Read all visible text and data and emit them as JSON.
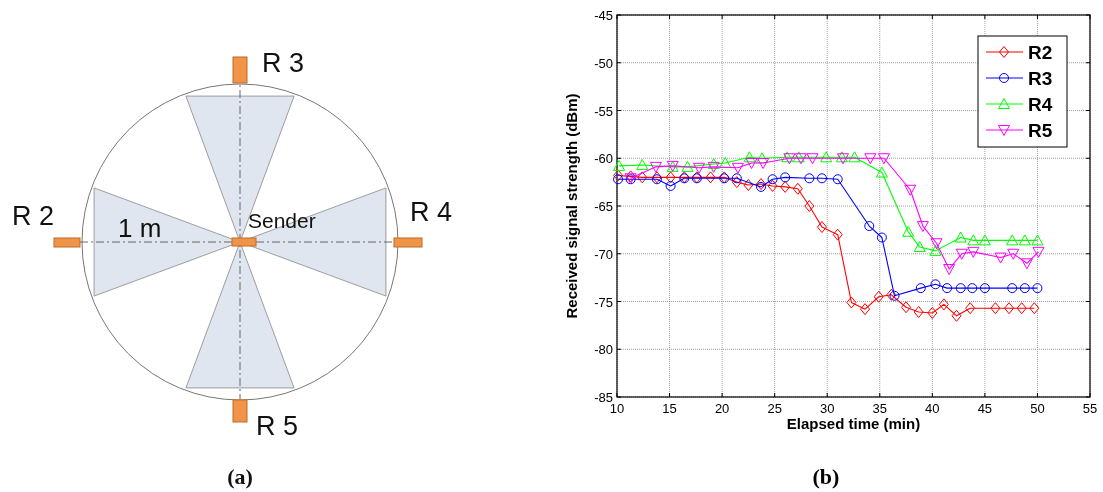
{
  "chart_data": [
    {
      "type": "other",
      "annotations": [
        "R 3",
        "R 2",
        "R 4",
        "R 5",
        "1 m",
        "Sender",
        "(a)"
      ]
    },
    {
      "type": "line",
      "xlabel": "Elapsed time (min)",
      "ylabel": "Received signal strength (dBm)",
      "annotations": [
        "(b)"
      ],
      "xlim": [
        10,
        55
      ],
      "xticks": [
        10,
        15,
        20,
        25,
        30,
        35,
        40,
        45,
        50,
        55
      ],
      "ylim": [
        -85,
        -45
      ],
      "yticks": [
        -85,
        -80,
        -75,
        -70,
        -65,
        -60,
        -55,
        -50,
        -45
      ],
      "grid": true,
      "legend": "top right",
      "line_style": "solid",
      "series": [
        {
          "name": "R2",
          "color": "#ff0000",
          "marker": "diamond",
          "x": [
            10.1,
            11.3,
            12.4,
            13.8,
            15.1,
            16.4,
            17.6,
            18.9,
            20.2,
            21.4,
            22.5,
            23.7,
            24.8,
            26,
            27.2,
            28.3,
            29.5,
            31,
            32.3,
            33.6,
            34.9,
            36.1,
            37.5,
            38.7,
            40,
            41.1,
            42.3,
            43.6,
            46,
            47.3,
            48.5,
            49.7
          ],
          "values": [
            -61.8,
            -61.9,
            -62,
            -62,
            -62,
            -62,
            -62,
            -62,
            -62,
            -62.5,
            -62.8,
            -62.7,
            -62.9,
            -63,
            -63.2,
            -65,
            -67.2,
            -68,
            -75.1,
            -75.8,
            -74.5,
            -74.3,
            -75.6,
            -76.1,
            -76.2,
            -75.3,
            -76.5,
            -75.7,
            -75.7,
            -75.7,
            -75.7,
            -75.7
          ]
        },
        {
          "name": "R3",
          "color": "#0000ff",
          "marker": "circle",
          "x": [
            10.1,
            11.3,
            13.8,
            15.1,
            16.4,
            17.6,
            20.2,
            21.4,
            23.7,
            24.8,
            26,
            28.3,
            29.5,
            31,
            34,
            35.2,
            36.4,
            38.9,
            40.3,
            41.4,
            42.7,
            43.8,
            45,
            47.6,
            48.8,
            50
          ],
          "values": [
            -62.2,
            -62.2,
            -62.2,
            -62.9,
            -62.1,
            -62.1,
            -62.1,
            -62.1,
            -63,
            -62.2,
            -62,
            -62.1,
            -62.1,
            -62.2,
            -67.1,
            -68.3,
            -74.4,
            -73.6,
            -73.2,
            -73.6,
            -73.6,
            -73.6,
            -73.6,
            -73.6,
            -73.6,
            -73.6
          ]
        },
        {
          "name": "R4",
          "color": "#00ff00",
          "marker": "triangle",
          "x": [
            10.2,
            12.4,
            15.3,
            16.7,
            19.2,
            20.3,
            22.6,
            23.8,
            26.2,
            27.3,
            29.9,
            31.4,
            32.6,
            35.2,
            37.7,
            38.8,
            40.3,
            42.7,
            43.9,
            45,
            47.6,
            48.8,
            50
          ],
          "values": [
            -60.8,
            -60.7,
            -60.9,
            -60.9,
            -60.6,
            -60.5,
            -59.9,
            -60,
            -59.9,
            -59.9,
            -59.9,
            -59.9,
            -59.9,
            -61.5,
            -67.7,
            -69.3,
            -69.7,
            -68.3,
            -68.6,
            -68.6,
            -68.6,
            -68.6,
            -68.6
          ]
        },
        {
          "name": "R5",
          "color": "#ff00ff",
          "marker": "triangle-down",
          "x": [
            11.3,
            13.7,
            15.3,
            17.8,
            19.2,
            21.5,
            22.8,
            23.9,
            26.4,
            27.5,
            28.6,
            31.5,
            34.1,
            35.4,
            37.9,
            39.1,
            40.4,
            41.6,
            42.8,
            43.9,
            46.5,
            47.7,
            49,
            50.1
          ],
          "values": [
            -62.1,
            -60.9,
            -60.8,
            -61,
            -60.9,
            -61,
            -60.5,
            -60.5,
            -60,
            -60,
            -60,
            -60,
            -60,
            -60,
            -63.3,
            -67.1,
            -68.9,
            -71.6,
            -70,
            -69.8,
            -70.4,
            -70,
            -71,
            -69.8
          ]
        }
      ]
    }
  ]
}
